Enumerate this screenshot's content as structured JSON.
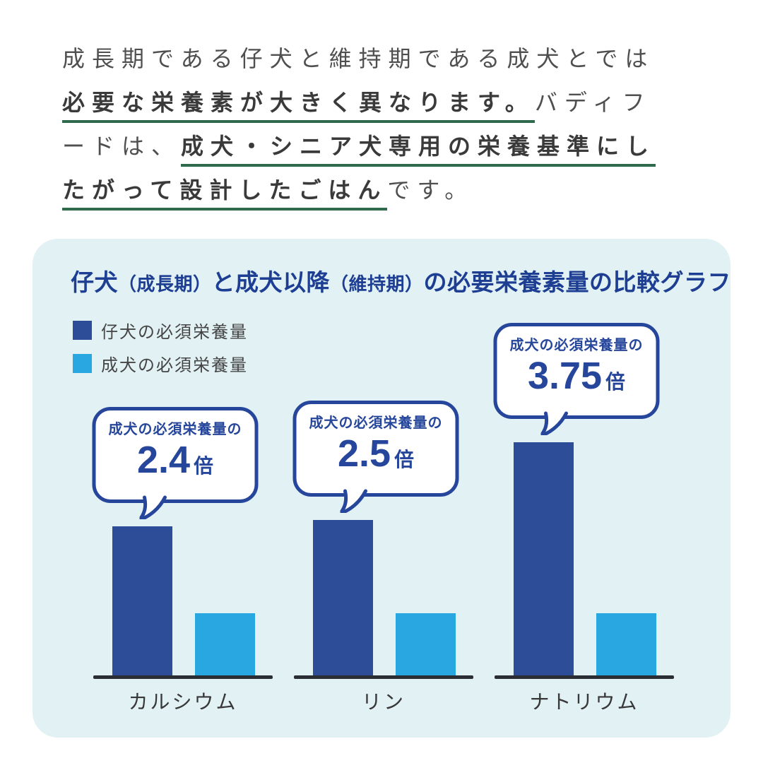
{
  "intro": {
    "lines": [
      {
        "segments": [
          {
            "text": "成長期である仔犬と維持期である成犬とでは",
            "emphasis": false
          }
        ]
      },
      {
        "segments": [
          {
            "text": "必要な栄養素が大きく異なります。",
            "emphasis": true
          },
          {
            "text": "バディフ",
            "emphasis": false
          }
        ]
      },
      {
        "segments": [
          {
            "text": "ードは、",
            "emphasis": false
          },
          {
            "text": "成犬・シニア犬専用の栄養基準にし",
            "emphasis": true
          }
        ]
      },
      {
        "segments": [
          {
            "text": "たがって設計したごはん",
            "emphasis": true
          },
          {
            "text": "です。",
            "emphasis": false
          }
        ]
      }
    ]
  },
  "chart_card": {
    "title_segments": [
      {
        "text": "仔犬",
        "size": "big"
      },
      {
        "text": "（成長期）",
        "size": "small"
      },
      {
        "text": "と成犬以降",
        "size": "big"
      },
      {
        "text": "（維持期）",
        "size": "small"
      },
      {
        "text": "の必要栄養素量の比較グラフ",
        "size": "big"
      }
    ]
  },
  "chart_data": {
    "type": "bar",
    "title": "仔犬（成長期）と成犬以降（維持期）の必要栄養素量の比較グラフ",
    "categories": [
      "カルシウム",
      "リン",
      "ナトリウム"
    ],
    "series": [
      {
        "name": "仔犬の必須栄養量",
        "color": "#2e4d99",
        "values": [
          2.4,
          2.5,
          3.75
        ]
      },
      {
        "name": "成犬の必須栄養量",
        "color": "#29a7e0",
        "values": [
          1,
          1,
          1
        ]
      }
    ],
    "annotations": [
      {
        "prefix": "成犬の必須栄養量の",
        "value": "2.4",
        "suffix": "倍"
      },
      {
        "prefix": "成犬の必須栄養量の",
        "value": "2.5",
        "suffix": "倍"
      },
      {
        "prefix": "成犬の必須栄養量の",
        "value": "3.75",
        "suffix": "倍"
      }
    ],
    "unit": "relative (adult dog requirement = 1)",
    "legend_position": "top-left",
    "grid": false,
    "ylim": [
      0,
      4
    ]
  },
  "colors": {
    "title_blue": "#1d3e92",
    "bubble_blue": "#26469b",
    "puppy_bar_blue": "#2e4d99",
    "adult_bar_blue": "#29a7e0",
    "card_background": "#e1f1f4",
    "underline_green": "#2e6a4b",
    "baseline_dark": "#2a2d33",
    "body_text_gray": "#4f4f4f"
  }
}
